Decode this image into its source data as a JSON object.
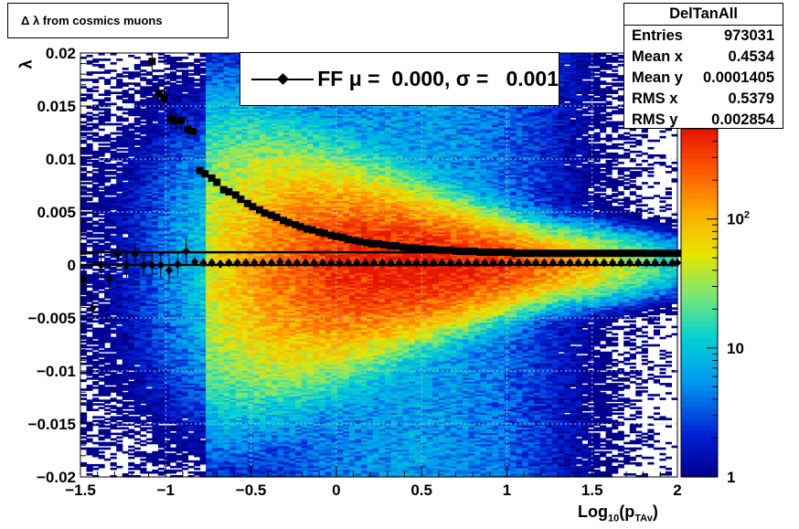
{
  "chart_data": {
    "type": "heatmap",
    "title": "Δ λ from cosmics muons",
    "xlabel": "Log",
    "xlabel_sub": "10",
    "xlabel_paren": "(p",
    "xlabel_psub": "TAv",
    "xlabel_close": ")",
    "ylabel": "λ",
    "xlim": [
      -1.5,
      2
    ],
    "ylim": [
      -0.02,
      0.02
    ],
    "x_ticks": [
      "−1.5",
      "−1",
      "−0.5",
      "0",
      "0.5",
      "1",
      "1.5",
      "2"
    ],
    "x_tick_values": [
      -1.5,
      -1,
      -0.5,
      0,
      0.5,
      1,
      1.5,
      2
    ],
    "y_ticks": [
      "0.02",
      "0.015",
      "0.01",
      "0.005",
      "0",
      "−0.005",
      "−0.01",
      "−0.015",
      "−0.02"
    ],
    "y_tick_values": [
      0.02,
      0.015,
      0.01,
      0.005,
      0,
      -0.005,
      -0.01,
      -0.015,
      -0.02
    ],
    "grid": true,
    "log_z": true,
    "colorbar": {
      "labels": [
        {
          "base": "10",
          "exp": "2",
          "value": 100
        },
        {
          "base": "10",
          "exp": "",
          "value": 10
        },
        {
          "base": "1",
          "exp": "",
          "value": 1
        }
      ],
      "zmax": 500
    },
    "stats": {
      "name": "DelTanAll",
      "rows": [
        {
          "label": "Entries",
          "value": "973031"
        },
        {
          "label": "Mean x",
          "value": "0.4534"
        },
        {
          "label": "Mean y",
          "value": "0.0001405"
        },
        {
          "label": "RMS x",
          "value": "0.5379"
        },
        {
          "label": "RMS y",
          "value": "0.002854"
        }
      ]
    },
    "legend": {
      "text": "FF μ =  0.000, σ =   0.001",
      "position": "top-center"
    },
    "series": [
      {
        "marker": "square",
        "x": [
          -1.08,
          -1.04,
          -1.01,
          -0.97,
          -0.94,
          -0.91,
          -0.87,
          -0.84,
          -0.8,
          -0.77,
          -0.73,
          -0.7,
          -0.66,
          -0.63,
          -0.59,
          -0.56,
          -0.52,
          -0.49,
          -0.45,
          -0.42,
          -0.38,
          -0.35,
          -0.31,
          -0.28,
          -0.24,
          -0.21,
          -0.17,
          -0.14,
          -0.1,
          -0.07,
          -0.03,
          0.0,
          0.04,
          0.07,
          0.11,
          0.14,
          0.18,
          0.21,
          0.25,
          0.28,
          0.32,
          0.35,
          0.39,
          0.42,
          0.46,
          0.49,
          0.53,
          0.56,
          0.6,
          0.63,
          0.67,
          0.7,
          0.74,
          0.77,
          0.81,
          0.84,
          0.88,
          0.91,
          0.95,
          0.98,
          1.02,
          1.05,
          1.09,
          1.12,
          1.16,
          1.19,
          1.23,
          1.26,
          1.3,
          1.33,
          1.37,
          1.4,
          1.44,
          1.47,
          1.51,
          1.54,
          1.58,
          1.61,
          1.65,
          1.68,
          1.72,
          1.75,
          1.79,
          1.82,
          1.86,
          1.89,
          1.93,
          1.96,
          2.0
        ],
        "y": [
          0.0192,
          0.0162,
          0.0158,
          0.0138,
          0.0136,
          0.0136,
          0.0128,
          0.0126,
          0.0089,
          0.0086,
          0.0082,
          0.0078,
          0.0071,
          0.0069,
          0.0066,
          0.0062,
          0.0058,
          0.0055,
          0.0052,
          0.0049,
          0.0047,
          0.0045,
          0.0042,
          0.004,
          0.0038,
          0.0036,
          0.0034,
          0.0033,
          0.0031,
          0.003,
          0.0028,
          0.0027,
          0.0026,
          0.0024,
          0.0023,
          0.0022,
          0.0021,
          0.002,
          0.002,
          0.0019,
          0.0018,
          0.0018,
          0.0017,
          0.0016,
          0.0016,
          0.0015,
          0.0015,
          0.0015,
          0.0014,
          0.0014,
          0.0014,
          0.0013,
          0.0013,
          0.0013,
          0.0013,
          0.0012,
          0.0012,
          0.0012,
          0.0012,
          0.0012,
          0.0012,
          0.0011,
          0.0011,
          0.0011,
          0.0011,
          0.0011,
          0.0011,
          0.0011,
          0.0011,
          0.0011,
          0.0011,
          0.0011,
          0.0011,
          0.0011,
          0.0011,
          0.0011,
          0.0011,
          0.0011,
          0.0011,
          0.0011,
          0.0011,
          0.0011,
          0.0011,
          0.0011,
          0.0011,
          0.0011,
          0.0011,
          0.0011,
          0.0011
        ]
      },
      {
        "marker": "diamond",
        "x": [
          -1.48,
          -1.43,
          -1.38,
          -1.33,
          -1.28,
          -1.23,
          -1.18,
          -1.13,
          -1.08,
          -1.03,
          -0.98,
          -0.93,
          -0.88,
          -0.83,
          -0.78,
          -0.73,
          -0.68,
          -0.63,
          -0.58,
          -0.53,
          -0.48,
          -0.43,
          -0.38,
          -0.33,
          -0.28,
          -0.23,
          -0.18,
          -0.13,
          -0.08,
          -0.03,
          0.02,
          0.07,
          0.12,
          0.17,
          0.22,
          0.27,
          0.32,
          0.37,
          0.42,
          0.47,
          0.52,
          0.57,
          0.62,
          0.67,
          0.72,
          0.77,
          0.82,
          0.87,
          0.92,
          0.97,
          1.02,
          1.07,
          1.12,
          1.17,
          1.22,
          1.27,
          1.32,
          1.37,
          1.42,
          1.47,
          1.52,
          1.57,
          1.62,
          1.67,
          1.72,
          1.77,
          1.82,
          1.87,
          1.92,
          1.97,
          2.0
        ],
        "y": [
          -0.0014,
          -0.0041,
          0.0,
          -0.0013,
          0.001,
          0.0,
          0.001,
          0.0,
          0.0,
          0.0,
          -0.0005,
          0.0001,
          0.0013,
          0.0003,
          0.0002,
          0.0002,
          0.0001,
          0.0002,
          0.0002,
          0.0002,
          0.0002,
          0.0002,
          0.0002,
          0.0003,
          0.0002,
          0.0002,
          0.0002,
          0.0002,
          0.0002,
          0.0002,
          0.0002,
          0.0002,
          0.0002,
          0.0002,
          0.0002,
          0.0002,
          0.0002,
          0.0002,
          0.0002,
          0.0002,
          0.0002,
          0.0002,
          0.0002,
          0.0002,
          0.0002,
          0.0002,
          0.0002,
          0.0002,
          0.0002,
          0.0002,
          0.0002,
          0.0002,
          0.0002,
          0.0002,
          0.0002,
          0.0002,
          0.0002,
          0.0002,
          0.0002,
          0.0002,
          0.0002,
          0.0002,
          0.0002,
          0.0002,
          0.0002,
          0.0002,
          0.0002,
          0.0002,
          0.0002,
          0.0002,
          0.0002
        ]
      }
    ],
    "fit_line": {
      "y": 0.0
    }
  }
}
